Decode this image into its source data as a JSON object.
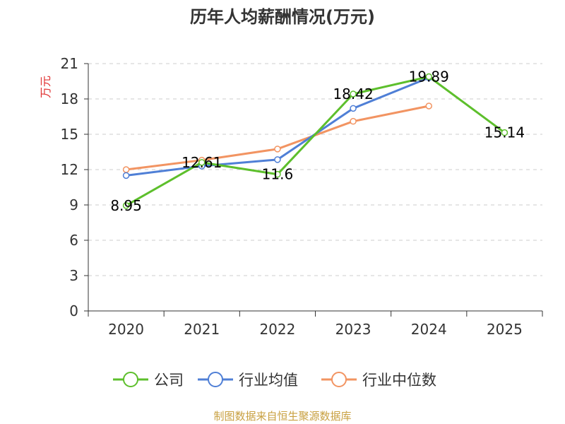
{
  "chart_data": {
    "type": "line",
    "title": "历年人均薪酬情况(万元)",
    "ylabel": "万元",
    "xlabel": "",
    "categories": [
      "2020",
      "2021",
      "2022",
      "2023",
      "2024",
      "2025"
    ],
    "ylim": [
      0,
      21
    ],
    "yticks": [
      "0",
      "3",
      "6",
      "9",
      "12",
      "15",
      "18",
      "21"
    ],
    "grid": true,
    "legend_position": "bottom",
    "series": [
      {
        "name": "公司",
        "color": "#5dbf2c",
        "values": [
          8.95,
          12.61,
          11.6,
          18.42,
          19.89,
          15.14
        ],
        "labels": [
          "8.95",
          "12.61",
          "11.6",
          "18.42",
          "19.89",
          "15.14"
        ]
      },
      {
        "name": "行业均值",
        "color": "#4f7fd6",
        "values": [
          11.5,
          12.3,
          12.85,
          17.2,
          19.8,
          null
        ]
      },
      {
        "name": "行业中位数",
        "color": "#f29462",
        "values": [
          12.0,
          12.8,
          13.75,
          16.1,
          17.4,
          null
        ]
      }
    ]
  },
  "source": "制图数据来自恒生聚源数据库"
}
